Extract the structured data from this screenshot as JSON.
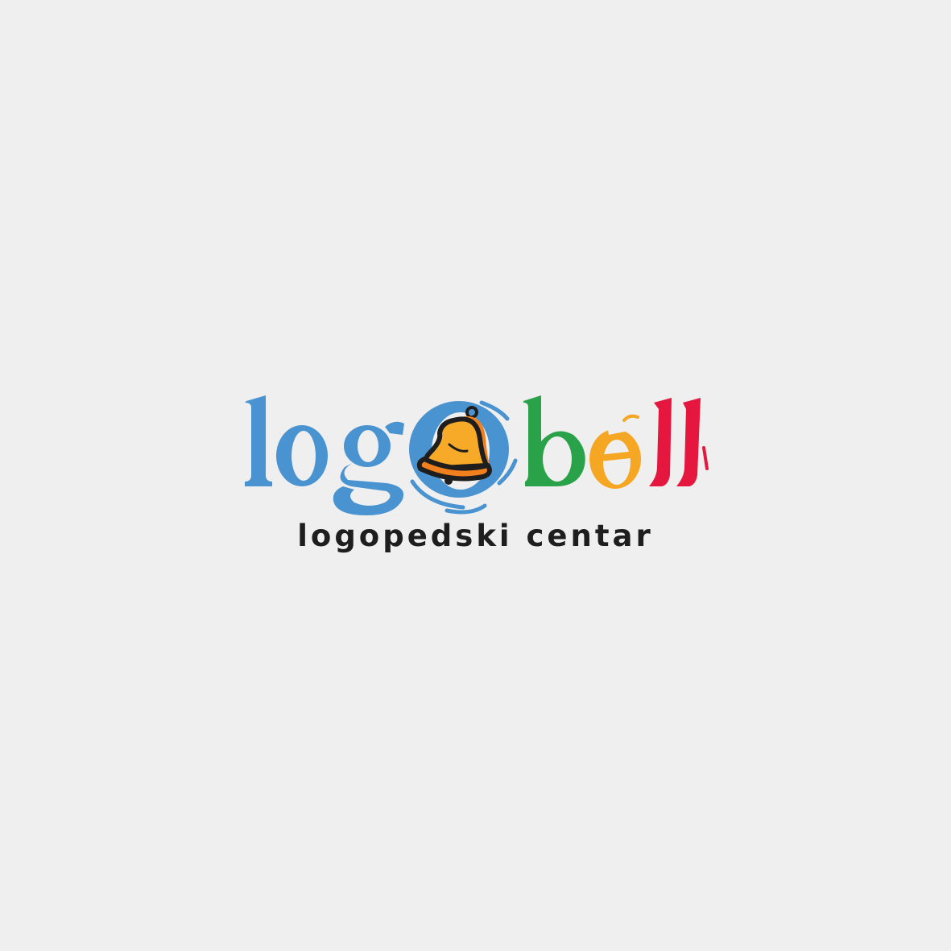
{
  "brand": {
    "wordmark": "logobell",
    "tagline": "logopedski centar",
    "icon": "bell-icon"
  },
  "colors": {
    "background": "#efefef",
    "blue": "#4a93d1",
    "green": "#2aa24a",
    "orange": "#f5a623",
    "red": "#e5173f",
    "bell_fill": "#f7a928",
    "bell_shadow": "#f07f1e",
    "outline": "#1e1e1e",
    "tagline": "#1e1e1e"
  }
}
